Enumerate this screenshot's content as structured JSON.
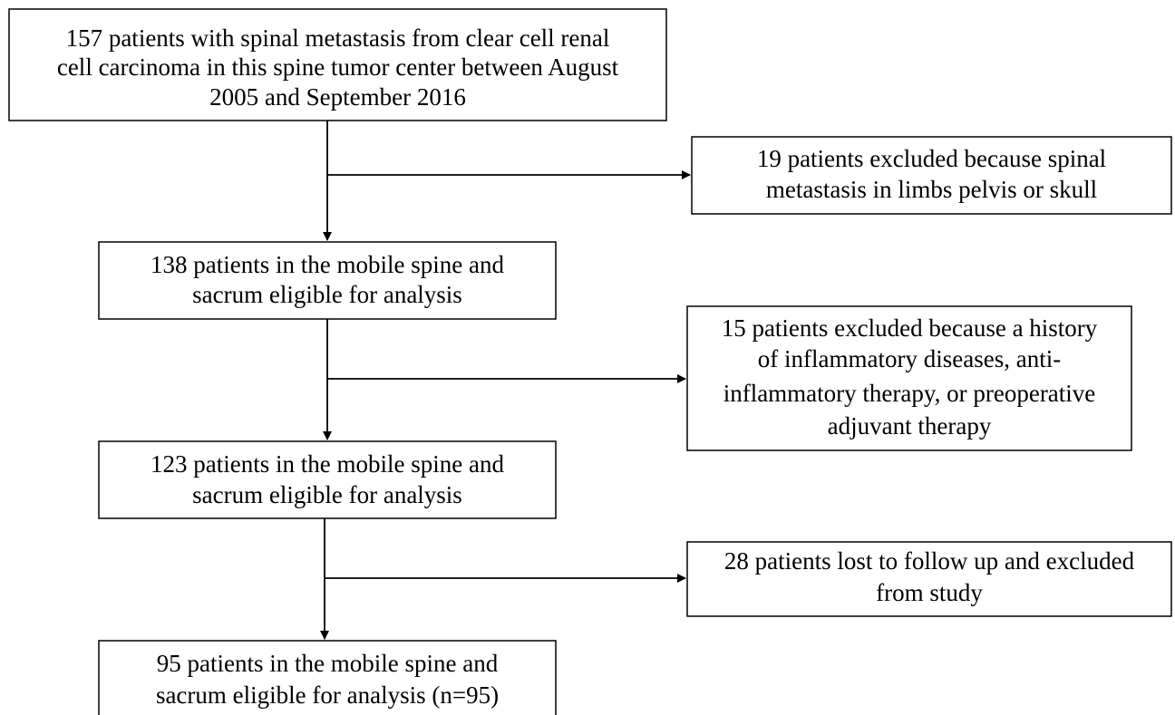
{
  "nodes": [
    {
      "lines": [
        "157 patients with spinal metastasis from clear cell renal",
        "cell carcinoma in this spine tumor center between August",
        "2005 and September 2016"
      ]
    },
    {
      "lines": [
        "19 patients excluded because spinal",
        "metastasis in limbs pelvis or skull"
      ]
    },
    {
      "lines": [
        "138 patients in the mobile spine and",
        "sacrum eligible for analysis"
      ]
    },
    {
      "lines": [
        "15 patients excluded because a history",
        "of inflammatory diseases, anti-",
        "inflammatory therapy, or preoperative",
        "adjuvant therapy"
      ]
    },
    {
      "lines": [
        "123 patients in the mobile spine and",
        "sacrum eligible for analysis"
      ]
    },
    {
      "lines": [
        "28 patients lost to follow up and excluded",
        "from study"
      ]
    },
    {
      "lines": [
        "95 patients in the mobile spine and",
        "sacrum eligible for analysis (n=95)"
      ]
    }
  ]
}
